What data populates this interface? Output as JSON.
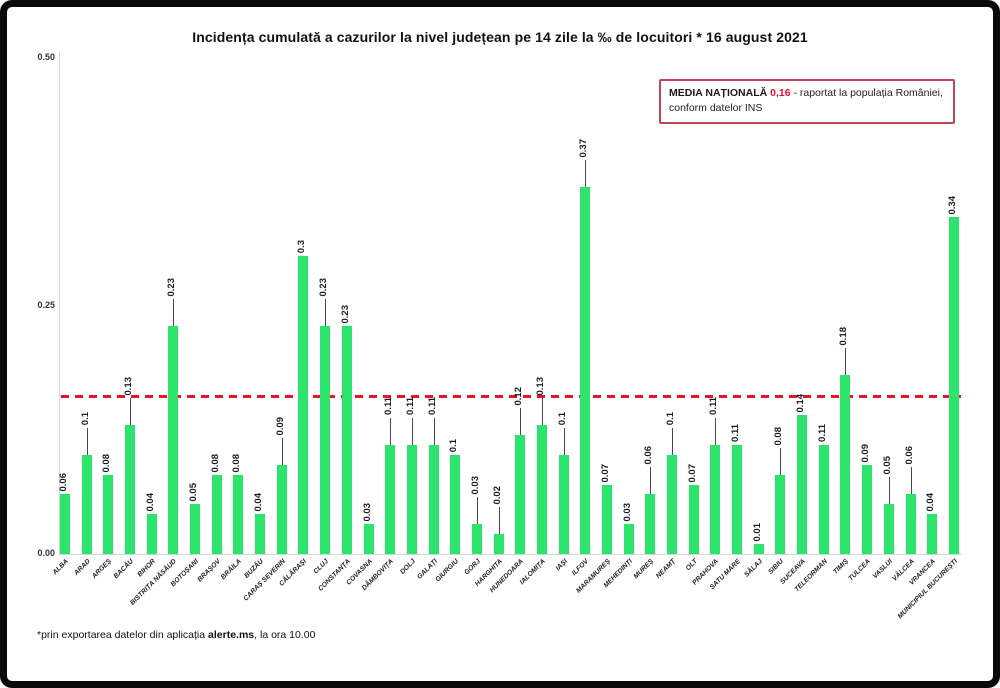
{
  "title": "Incidența cumulată a cazurilor la nivel județean pe 14 zile la ‰ de locuitori *  16 august 2021",
  "note_box": {
    "label": "MEDIA NAȚIONALĂ ",
    "value": "0,16",
    "text_after": " - raportat la populația României, conform datelor INS",
    "border_color": "#c14358",
    "value_color": "#e8112d"
  },
  "footer": {
    "prefix": "*prin exportarea datelor din aplicația ",
    "bold": "alerte.ms",
    "suffix": ", la ora 10.00"
  },
  "chart_data": {
    "type": "bar",
    "title": "Incidența cumulată a cazurilor la nivel județean pe 14 zile la ‰ de locuitori * 16 august 2021",
    "xlabel": "",
    "ylabel": "",
    "ylim": [
      0,
      0.5
    ],
    "yticks": [
      "0.00",
      "0.25",
      "0.50"
    ],
    "grid": false,
    "legend_position": "none",
    "bar_color": "#2ce46c",
    "avg_line_color": "#e8132e",
    "national_average": 0.16,
    "categories": [
      "ALBA",
      "ARAD",
      "ARGEȘ",
      "BACĂU",
      "BIHOR",
      "BISTRIȚA NĂSĂUD",
      "BOTOȘANI",
      "BRAȘOV",
      "BRĂILA",
      "BUZĂU",
      "CARAȘ SEVERIN",
      "CĂLĂRAȘI",
      "CLUJ",
      "CONSTANȚA",
      "COVASNA",
      "DÂMBOVIȚA",
      "DOLJ",
      "GALAȚI",
      "GIURGIU",
      "GORJ",
      "HARGHITA",
      "HUNEDOARA",
      "IALOMIȚA",
      "IAȘI",
      "ILFOV",
      "MARAMUREȘ",
      "MEHEDINȚI",
      "MUREȘ",
      "NEAMȚ",
      "OLT",
      "PRAHOVA",
      "SATU MARE",
      "SĂLAJ",
      "SIBIU",
      "SUCEAVA",
      "TELEORMAN",
      "TIMIȘ",
      "TULCEA",
      "VASLUI",
      "VÂLCEA",
      "VRANCEA",
      "MUNICIPIUL BUCUREȘTI"
    ],
    "values": [
      0.06,
      0.1,
      0.08,
      0.13,
      0.04,
      0.23,
      0.05,
      0.08,
      0.08,
      0.04,
      0.09,
      0.3,
      0.23,
      0.23,
      0.03,
      0.11,
      0.11,
      0.11,
      0.1,
      0.03,
      0.02,
      0.12,
      0.13,
      0.1,
      0.37,
      0.07,
      0.03,
      0.06,
      0.1,
      0.07,
      0.11,
      0.11,
      0.01,
      0.08,
      0.14,
      0.11,
      0.18,
      0.09,
      0.05,
      0.06,
      0.04,
      0.34
    ],
    "value_labels": [
      "0.06",
      "0.1",
      "0.08",
      "0.13",
      "0.04",
      "0.23",
      "0.05",
      "0.08",
      "0.08",
      "0.04",
      "0.09",
      "0.3",
      "0.23",
      "0.23",
      "0.03",
      "0.11",
      "0.11",
      "0.11",
      "0.1",
      "0.03",
      "0.02",
      "0.12",
      "0.13",
      "0.1",
      "0.37",
      "0.07",
      "0.03",
      "0.06",
      "0.1",
      "0.07",
      "0.11",
      "0.11",
      "0.01",
      "0.08",
      "0.14",
      "0.11",
      "0.18",
      "0.09",
      "0.05",
      "0.06",
      "0.04",
      "0.34"
    ],
    "leaders": [
      false,
      true,
      false,
      true,
      false,
      true,
      false,
      false,
      false,
      false,
      true,
      false,
      true,
      false,
      false,
      true,
      true,
      true,
      false,
      true,
      true,
      true,
      true,
      true,
      true,
      false,
      false,
      true,
      true,
      false,
      true,
      false,
      false,
      true,
      false,
      false,
      true,
      false,
      true,
      true,
      false,
      false
    ]
  }
}
